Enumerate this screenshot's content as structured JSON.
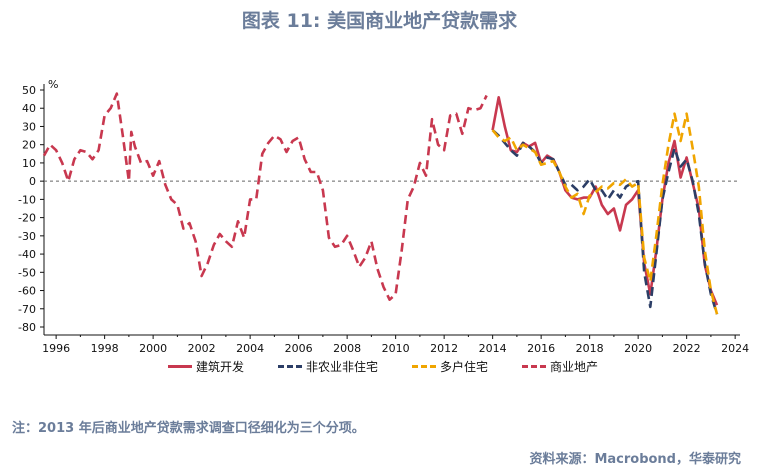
{
  "title": "图表 11: 美国商业地产贷款需求",
  "note": "注：2013 年后商业地产贷款需求调查口径细化为三个分项。",
  "source": "资料来源：Macrobond，华泰研究",
  "chart_data": {
    "type": "line",
    "ylabel": "%",
    "ylim": [
      -80,
      50
    ],
    "xlim": [
      1995.5,
      2024.2
    ],
    "yticks": [
      50,
      40,
      30,
      20,
      10,
      0,
      -10,
      -20,
      -30,
      -40,
      -50,
      -60,
      -70,
      -80
    ],
    "xticks": [
      1996,
      1998,
      2000,
      2002,
      2004,
      2006,
      2008,
      2010,
      2012,
      2014,
      2016,
      2018,
      2020,
      2022,
      2024
    ],
    "zero_line": true,
    "legend_position": "bottom",
    "series": [
      {
        "name": "建筑开发",
        "color": "#c8384f",
        "dash": false,
        "points": [
          [
            2014.0,
            28
          ],
          [
            2014.25,
            46
          ],
          [
            2014.5,
            30
          ],
          [
            2014.75,
            17
          ],
          [
            2015.0,
            16
          ],
          [
            2015.25,
            21
          ],
          [
            2015.5,
            19
          ],
          [
            2015.75,
            21
          ],
          [
            2016.0,
            10
          ],
          [
            2016.25,
            14
          ],
          [
            2016.5,
            12
          ],
          [
            2016.75,
            5
          ],
          [
            2017.0,
            -5
          ],
          [
            2017.25,
            -9
          ],
          [
            2017.5,
            -10
          ],
          [
            2017.75,
            -9
          ],
          [
            2018.0,
            -9
          ],
          [
            2018.25,
            -3
          ],
          [
            2018.5,
            -13
          ],
          [
            2018.75,
            -18
          ],
          [
            2019.0,
            -15
          ],
          [
            2019.25,
            -27
          ],
          [
            2019.5,
            -13
          ],
          [
            2019.75,
            -10
          ],
          [
            2020.0,
            -5
          ],
          [
            2020.25,
            -45
          ],
          [
            2020.5,
            -62
          ],
          [
            2020.75,
            -38
          ],
          [
            2021.0,
            -10
          ],
          [
            2021.25,
            10
          ],
          [
            2021.5,
            22
          ],
          [
            2021.75,
            2
          ],
          [
            2022.0,
            13
          ],
          [
            2022.25,
            -1
          ],
          [
            2022.5,
            -15
          ],
          [
            2022.75,
            -46
          ],
          [
            2023.0,
            -60
          ],
          [
            2023.25,
            -68
          ]
        ]
      },
      {
        "name": "非农业非住宅",
        "color": "#2c3e66",
        "dash": true,
        "points": [
          [
            2014.0,
            28
          ],
          [
            2014.25,
            25
          ],
          [
            2014.5,
            21
          ],
          [
            2014.75,
            17
          ],
          [
            2015.0,
            14
          ],
          [
            2015.25,
            21
          ],
          [
            2015.5,
            19
          ],
          [
            2015.75,
            16
          ],
          [
            2016.0,
            10
          ],
          [
            2016.25,
            13
          ],
          [
            2016.5,
            12
          ],
          [
            2016.75,
            5
          ],
          [
            2017.0,
            -2
          ],
          [
            2017.25,
            -2
          ],
          [
            2017.5,
            -5
          ],
          [
            2017.75,
            -3
          ],
          [
            2018.0,
            1
          ],
          [
            2018.25,
            -5
          ],
          [
            2018.5,
            -5
          ],
          [
            2018.75,
            -10
          ],
          [
            2019.0,
            -5
          ],
          [
            2019.25,
            -9
          ],
          [
            2019.5,
            -3
          ],
          [
            2019.75,
            -1
          ],
          [
            2020.0,
            0
          ],
          [
            2020.25,
            -50
          ],
          [
            2020.5,
            -69
          ],
          [
            2020.75,
            -40
          ],
          [
            2021.0,
            -10
          ],
          [
            2021.25,
            5
          ],
          [
            2021.5,
            18
          ],
          [
            2021.75,
            8
          ],
          [
            2022.0,
            12
          ],
          [
            2022.25,
            0
          ],
          [
            2022.5,
            -18
          ],
          [
            2022.75,
            -45
          ],
          [
            2023.0,
            -62
          ],
          [
            2023.25,
            -73
          ]
        ]
      },
      {
        "name": "多户住宅",
        "color": "#f0a500",
        "dash": true,
        "points": [
          [
            2014.0,
            28
          ],
          [
            2014.25,
            24
          ],
          [
            2014.5,
            22
          ],
          [
            2014.75,
            24
          ],
          [
            2015.0,
            17
          ],
          [
            2015.25,
            20
          ],
          [
            2015.5,
            18
          ],
          [
            2015.75,
            16
          ],
          [
            2016.0,
            9
          ],
          [
            2016.25,
            10
          ],
          [
            2016.5,
            11
          ],
          [
            2016.75,
            5
          ],
          [
            2017.0,
            -3
          ],
          [
            2017.25,
            -9
          ],
          [
            2017.5,
            -7
          ],
          [
            2017.75,
            -18
          ],
          [
            2018.0,
            -8
          ],
          [
            2018.25,
            -6
          ],
          [
            2018.5,
            -3
          ],
          [
            2018.75,
            -4
          ],
          [
            2019.0,
            -1
          ],
          [
            2019.25,
            -2
          ],
          [
            2019.5,
            1
          ],
          [
            2019.75,
            -3
          ],
          [
            2020.0,
            -1
          ],
          [
            2020.25,
            -42
          ],
          [
            2020.5,
            -55
          ],
          [
            2020.75,
            -30
          ],
          [
            2021.0,
            -2
          ],
          [
            2021.25,
            20
          ],
          [
            2021.5,
            37
          ],
          [
            2021.75,
            22
          ],
          [
            2022.0,
            37
          ],
          [
            2022.25,
            18
          ],
          [
            2022.5,
            -3
          ],
          [
            2022.75,
            -38
          ],
          [
            2023.0,
            -60
          ],
          [
            2023.25,
            -73
          ]
        ]
      },
      {
        "name": "商业地产",
        "color": "#c8384f",
        "dash": true,
        "points": [
          [
            1995.5,
            14
          ],
          [
            1995.75,
            20
          ],
          [
            1996.0,
            17
          ],
          [
            1996.25,
            10
          ],
          [
            1996.5,
            0
          ],
          [
            1996.75,
            12
          ],
          [
            1997.0,
            17
          ],
          [
            1997.25,
            16
          ],
          [
            1997.5,
            12
          ],
          [
            1997.75,
            17
          ],
          [
            1998.0,
            36
          ],
          [
            1998.25,
            40
          ],
          [
            1998.5,
            48
          ],
          [
            1998.75,
            25
          ],
          [
            1999.0,
            0
          ],
          [
            1999.1,
            27
          ],
          [
            1999.25,
            19
          ],
          [
            1999.5,
            10
          ],
          [
            1999.75,
            11
          ],
          [
            2000.0,
            3
          ],
          [
            2000.25,
            11
          ],
          [
            2000.5,
            -2
          ],
          [
            2000.75,
            -10
          ],
          [
            2001.0,
            -13
          ],
          [
            2001.25,
            -26
          ],
          [
            2001.5,
            -23
          ],
          [
            2001.75,
            -33
          ],
          [
            2002.0,
            -52
          ],
          [
            2002.25,
            -45
          ],
          [
            2002.5,
            -35
          ],
          [
            2002.75,
            -29
          ],
          [
            2003.0,
            -33
          ],
          [
            2003.25,
            -36
          ],
          [
            2003.5,
            -22
          ],
          [
            2003.75,
            -31
          ],
          [
            2004.0,
            -10
          ],
          [
            2004.25,
            -10
          ],
          [
            2004.5,
            15
          ],
          [
            2004.75,
            21
          ],
          [
            2005.0,
            25
          ],
          [
            2005.25,
            23
          ],
          [
            2005.5,
            16
          ],
          [
            2005.75,
            22
          ],
          [
            2006.0,
            24
          ],
          [
            2006.25,
            12
          ],
          [
            2006.5,
            5
          ],
          [
            2006.75,
            5
          ],
          [
            2007.0,
            -5
          ],
          [
            2007.25,
            -31
          ],
          [
            2007.5,
            -36
          ],
          [
            2007.75,
            -35
          ],
          [
            2008.0,
            -30
          ],
          [
            2008.25,
            -38
          ],
          [
            2008.5,
            -47
          ],
          [
            2008.75,
            -42
          ],
          [
            2009.0,
            -33
          ],
          [
            2009.25,
            -48
          ],
          [
            2009.5,
            -58
          ],
          [
            2009.75,
            -65
          ],
          [
            2010.0,
            -62
          ],
          [
            2010.25,
            -38
          ],
          [
            2010.5,
            -10
          ],
          [
            2010.75,
            -3
          ],
          [
            2011.0,
            10
          ],
          [
            2011.25,
            3
          ],
          [
            2011.5,
            34
          ],
          [
            2011.75,
            20
          ],
          [
            2012.0,
            17
          ],
          [
            2012.25,
            36
          ],
          [
            2012.5,
            37
          ],
          [
            2012.75,
            26
          ],
          [
            2013.0,
            40
          ],
          [
            2013.25,
            39
          ],
          [
            2013.5,
            40
          ],
          [
            2013.75,
            47
          ]
        ]
      }
    ]
  }
}
